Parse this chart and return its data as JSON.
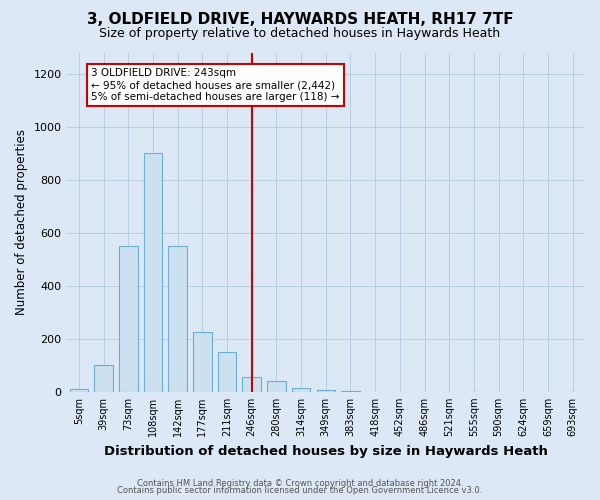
{
  "title": "3, OLDFIELD DRIVE, HAYWARDS HEATH, RH17 7TF",
  "subtitle": "Size of property relative to detached houses in Haywards Heath",
  "xlabel": "Distribution of detached houses by size in Haywards Heath",
  "ylabel": "Number of detached properties",
  "footnote1": "Contains HM Land Registry data © Crown copyright and database right 2024.",
  "footnote2": "Contains public sector information licensed under the Open Government Licence v3.0.",
  "bin_labels": [
    "5sqm",
    "39sqm",
    "73sqm",
    "108sqm",
    "142sqm",
    "177sqm",
    "211sqm",
    "246sqm",
    "280sqm",
    "314sqm",
    "349sqm",
    "383sqm",
    "418sqm",
    "452sqm",
    "486sqm",
    "521sqm",
    "555sqm",
    "590sqm",
    "624sqm",
    "659sqm",
    "693sqm"
  ],
  "bar_heights": [
    10,
    100,
    550,
    900,
    550,
    225,
    150,
    55,
    40,
    15,
    5,
    2,
    1,
    1,
    0,
    0,
    0,
    0,
    0,
    0,
    0
  ],
  "bar_color": "#cce0f0",
  "bar_edge_color": "#6aafd6",
  "vline_x_index": 7,
  "vline_color": "#cc0000",
  "ylim": [
    0,
    1280
  ],
  "yticks": [
    0,
    200,
    400,
    600,
    800,
    1000,
    1200
  ],
  "annotation_text": "3 OLDFIELD DRIVE: 243sqm\n← 95% of detached houses are smaller (2,442)\n5% of semi-detached houses are larger (118) →",
  "annotation_box_color": "#ffffff",
  "annotation_box_edge": "#cc0000",
  "background_color": "#dce8f5",
  "plot_background": "#dce8f5",
  "grid_color": "#b8cfe0",
  "title_fontsize": 11,
  "subtitle_fontsize": 9,
  "axis_label_fontsize": 8.5,
  "tick_fontsize": 7,
  "annotation_fontsize": 7.5,
  "bar_width": 0.75
}
